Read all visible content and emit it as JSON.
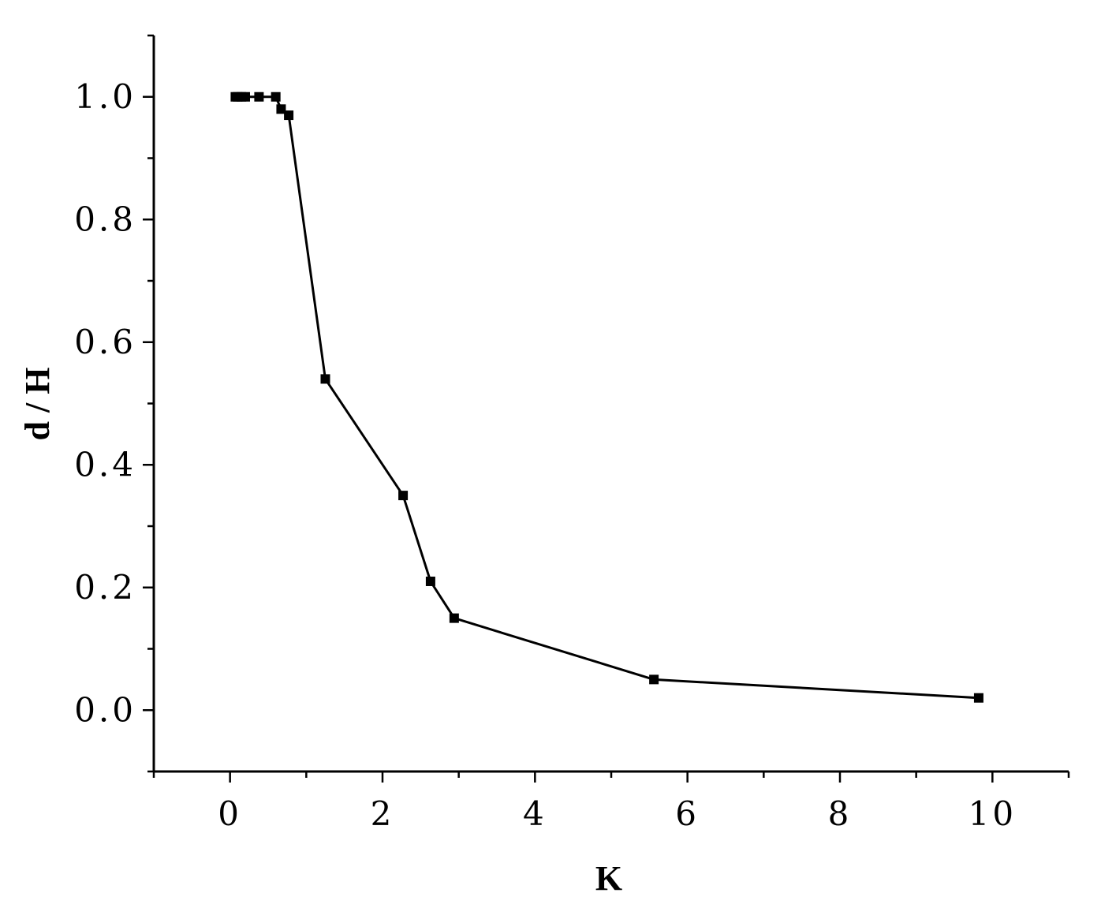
{
  "chart_data": {
    "type": "line",
    "xlabel": "K",
    "ylabel": "d / H",
    "xlim": [
      -1.0,
      11.0
    ],
    "ylim": [
      -0.1,
      1.1
    ],
    "x_ticks": [
      0,
      2,
      4,
      6,
      8,
      10
    ],
    "x_tick_labels": [
      "0",
      "2",
      "4",
      "6",
      "8",
      "10"
    ],
    "y_ticks": [
      0.0,
      0.2,
      0.4,
      0.6,
      0.8,
      1.0
    ],
    "y_tick_labels": [
      "0.0",
      "0.2",
      "0.4",
      "0.6",
      "0.8",
      "1.0"
    ],
    "grid": false,
    "marker": "square",
    "series": [
      {
        "x": [
          0.07,
          0.1,
          0.15,
          0.2,
          0.38,
          0.6,
          0.67,
          0.77,
          1.25,
          2.27,
          2.63,
          2.94,
          5.56,
          9.82
        ],
        "y": [
          1.0,
          1.0,
          1.0,
          1.0,
          1.0,
          1.0,
          0.98,
          0.97,
          0.54,
          0.35,
          0.21,
          0.15,
          0.05,
          0.02
        ],
        "color": "#000000"
      }
    ]
  }
}
